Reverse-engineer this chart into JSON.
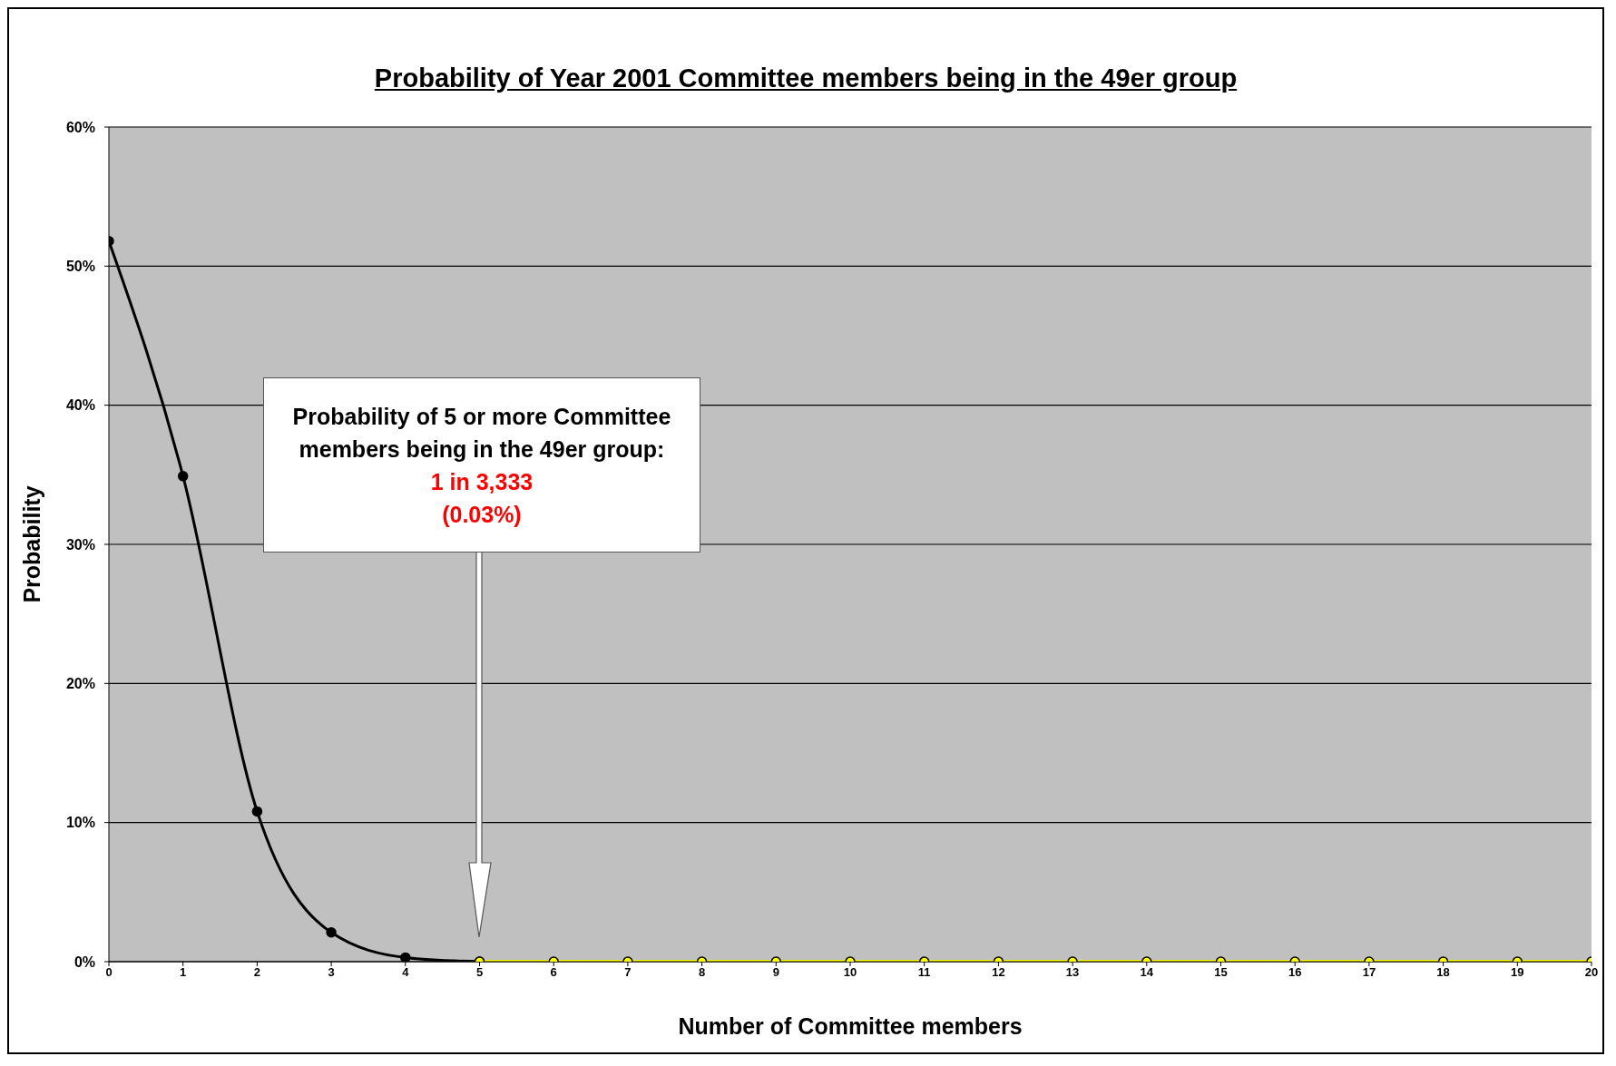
{
  "chart_data": {
    "type": "line",
    "title": "Probability of Year 2001 Committee members being in the 49er group",
    "xlabel": "Number of Committee members",
    "ylabel": "Probability",
    "annotations": [
      "Probability of 5 or more Committee members being in the 49er group:",
      "1 in 3,333",
      "(0.03%)"
    ],
    "series": [
      {
        "color": "#000000",
        "x": [
          0,
          1,
          2,
          3,
          4,
          5
        ],
        "values": [
          51.8,
          34.9,
          10.8,
          2.1,
          0.3,
          0
        ]
      },
      {
        "color": "#ffff00",
        "x": [
          5,
          6,
          7,
          8,
          9,
          10,
          11,
          12,
          13,
          14,
          15,
          16,
          17,
          18,
          19,
          20
        ],
        "values": [
          0,
          0,
          0,
          0,
          0,
          0,
          0,
          0,
          0,
          0,
          0,
          0,
          0,
          0,
          0,
          0
        ]
      }
    ],
    "xlim": [
      0,
      20
    ],
    "xticks": [
      0,
      1,
      2,
      3,
      4,
      5,
      6,
      7,
      8,
      9,
      10,
      11,
      12,
      13,
      14,
      15,
      16,
      17,
      18,
      19,
      20
    ],
    "ylim": [
      0,
      60
    ],
    "yticks": [
      {
        "value": 0,
        "label": "0%"
      },
      {
        "value": 10,
        "label": "10%"
      },
      {
        "value": 20,
        "label": "20%"
      },
      {
        "value": 30,
        "label": "30%"
      },
      {
        "value": 40,
        "label": "40%"
      },
      {
        "value": 50,
        "label": "50%"
      },
      {
        "value": 60,
        "label": "60%"
      }
    ],
    "grid": "y",
    "marker": "circle",
    "line_style": "solid"
  }
}
